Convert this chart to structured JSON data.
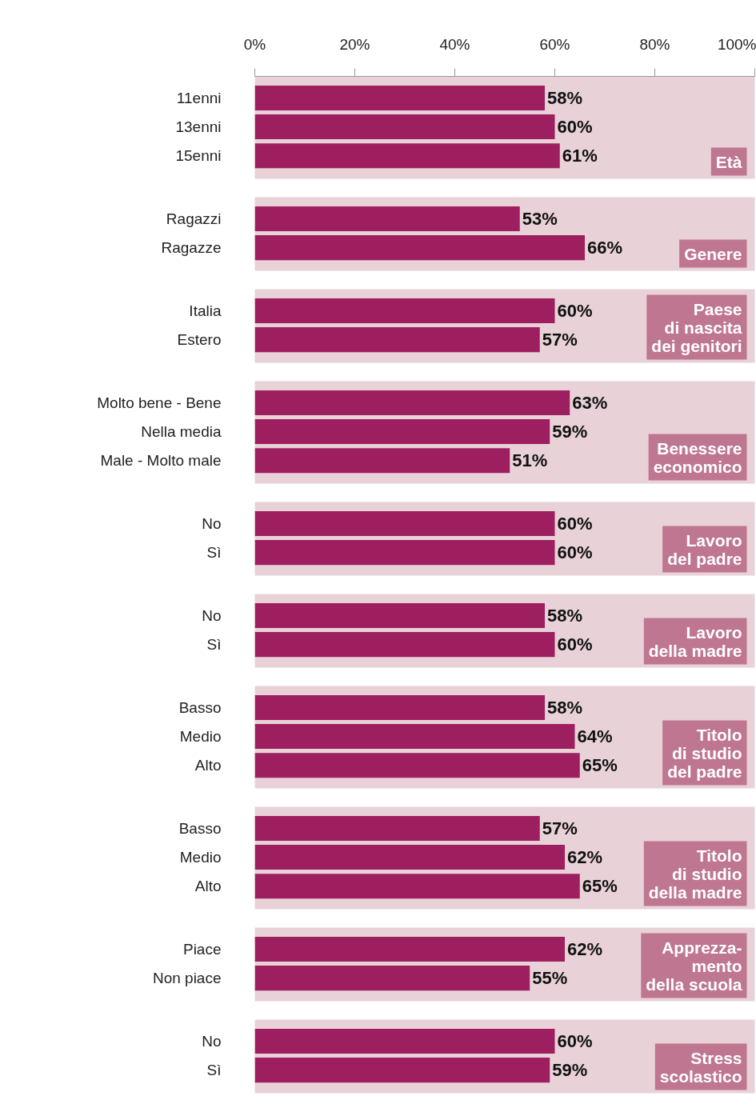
{
  "chart_data": [
    {
      "type": "bar",
      "orientation": "horizontal",
      "title": "Età",
      "categories": [
        "11enni",
        "13enni",
        "15enni"
      ],
      "values": [
        58,
        60,
        61
      ],
      "value_labels": [
        "58%",
        "60%",
        "61%"
      ],
      "color": "#9e1f60",
      "xlim": [
        0,
        100
      ],
      "xticks": [
        {
          "value": 0,
          "label": "0%"
        },
        {
          "value": 20,
          "label": "20%"
        },
        {
          "value": 40,
          "label": "40%"
        },
        {
          "value": 60,
          "label": "60%"
        },
        {
          "value": 80,
          "label": "80%"
        },
        {
          "value": 100,
          "label": "100%"
        }
      ]
    },
    {
      "type": "bar",
      "orientation": "horizontal",
      "title": "Genere",
      "categories": [
        "Ragazzi",
        "Ragazze"
      ],
      "values": [
        53,
        66
      ],
      "value_labels": [
        "53%",
        "66%"
      ],
      "color": "#9e1f60",
      "xlim": [
        0,
        100
      ],
      "tick_labels": "y"
    },
    {
      "type": "bar",
      "orientation": "horizontal",
      "title": "Paese\ndi nascita\ndei genitori",
      "categories": [
        "Italia",
        "Estero"
      ],
      "values": [
        60,
        57
      ],
      "value_labels": [
        "60%",
        "57%"
      ],
      "color": "#9e1f60",
      "xlim": [
        0,
        100
      ],
      "tick_labels": "y"
    },
    {
      "type": "bar",
      "orientation": "horizontal",
      "title": "Benessere\neconomico",
      "categories": [
        "Molto bene - Bene",
        "Nella media",
        "Male - Molto male"
      ],
      "values": [
        63,
        59,
        51
      ],
      "value_labels": [
        "63%",
        "59%",
        "51%"
      ],
      "color": "#9e1f60",
      "xlim": [
        0,
        100
      ],
      "tick_labels": "y"
    },
    {
      "type": "bar",
      "orientation": "horizontal",
      "title": "Lavoro\ndel padre",
      "categories": [
        "No",
        "Sì"
      ],
      "values": [
        60,
        60
      ],
      "value_labels": [
        "60%",
        "60%"
      ],
      "color": "#9e1f60",
      "xlim": [
        0,
        100
      ],
      "tick_labels": "y"
    },
    {
      "type": "bar",
      "orientation": "horizontal",
      "title": "Lavoro\ndella madre",
      "categories": [
        "No",
        "Sì"
      ],
      "values": [
        58,
        60
      ],
      "value_labels": [
        "58%",
        "60%"
      ],
      "color": "#9e1f60",
      "xlim": [
        0,
        100
      ],
      "tick_labels": "y"
    },
    {
      "type": "bar",
      "orientation": "horizontal",
      "title": "Titolo\ndi studio\ndel padre",
      "categories": [
        "Basso",
        "Medio",
        "Alto"
      ],
      "values": [
        58,
        64,
        65
      ],
      "value_labels": [
        "58%",
        "64%",
        "65%"
      ],
      "color": "#9e1f60",
      "xlim": [
        0,
        100
      ],
      "tick_labels": "y"
    },
    {
      "type": "bar",
      "orientation": "horizontal",
      "title": "Titolo\ndi studio\ndella madre",
      "categories": [
        "Basso",
        "Medio",
        "Alto"
      ],
      "values": [
        57,
        62,
        65
      ],
      "value_labels": [
        "57%",
        "62%",
        "65%"
      ],
      "color": "#9e1f60",
      "xlim": [
        0,
        100
      ],
      "tick_labels": "y"
    },
    {
      "type": "bar",
      "orientation": "horizontal",
      "title": "Apprezza-\nmento\ndella scuola",
      "categories": [
        "Piace",
        "Non piace"
      ],
      "values": [
        62,
        55
      ],
      "value_labels": [
        "62%",
        "55%"
      ],
      "color": "#9e1f60",
      "xlim": [
        0,
        100
      ],
      "tick_labels": "y"
    },
    {
      "type": "bar",
      "orientation": "horizontal",
      "title": "Stress\nscolastico",
      "categories": [
        "No",
        "Sì"
      ],
      "values": [
        60,
        59
      ],
      "value_labels": [
        "60%",
        "59%"
      ],
      "color": "#9e1f60",
      "xlim": [
        0,
        100
      ],
      "tick_labels": "y"
    }
  ]
}
